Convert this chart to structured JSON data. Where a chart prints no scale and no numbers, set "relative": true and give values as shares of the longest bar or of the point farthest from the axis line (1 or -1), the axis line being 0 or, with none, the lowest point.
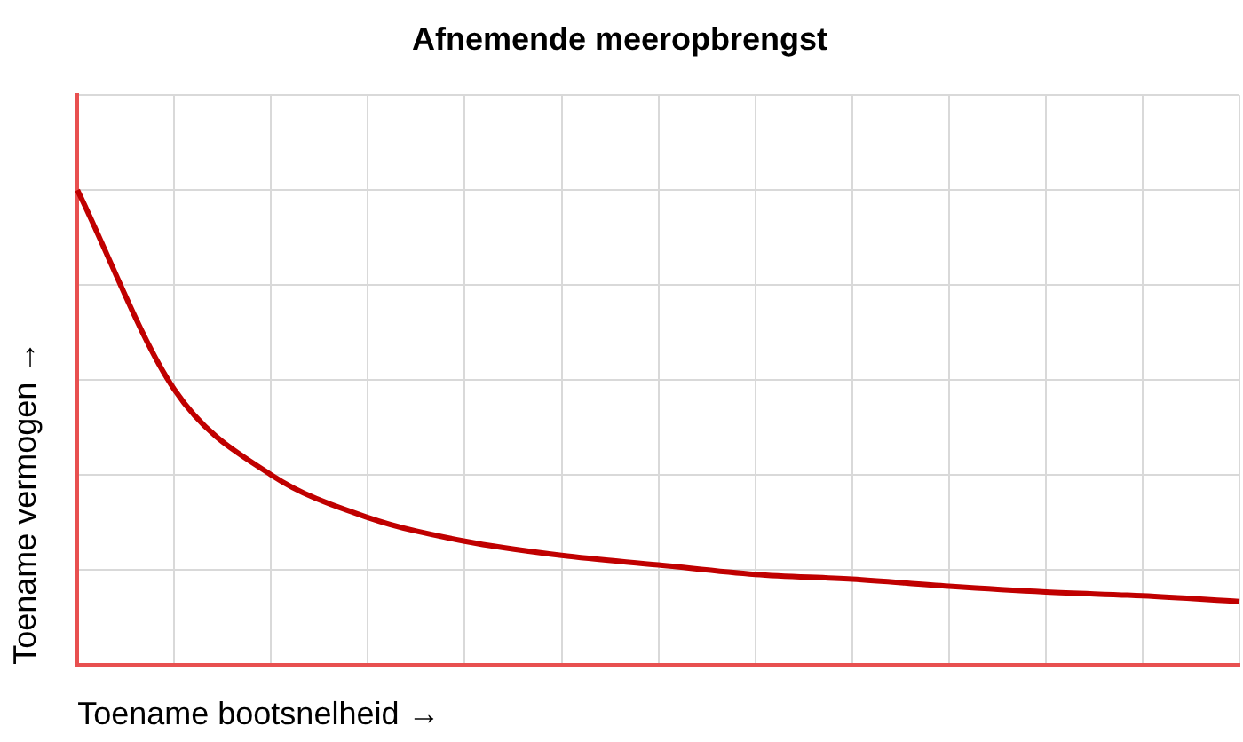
{
  "chart_data": {
    "type": "line",
    "title": "Afnemende meeropbrengst",
    "xlabel": "Toename bootsnelheid →",
    "ylabel": "Toename vermogen →",
    "categories": [
      null,
      null,
      null,
      null,
      null,
      null,
      null,
      null,
      null,
      null,
      null,
      null,
      null
    ],
    "series": [
      {
        "color": "#c00000",
        "values": [
          1,
          0.58,
          0.4,
          0.31,
          0.26,
          0.23,
          0.21,
          0.19,
          0.18,
          0.165,
          0.153,
          0.145,
          0.133
        ]
      }
    ],
    "relative": true,
    "grid": true,
    "legend": false,
    "tick_labels": false,
    "marker": "none",
    "line_style": "solid"
  }
}
